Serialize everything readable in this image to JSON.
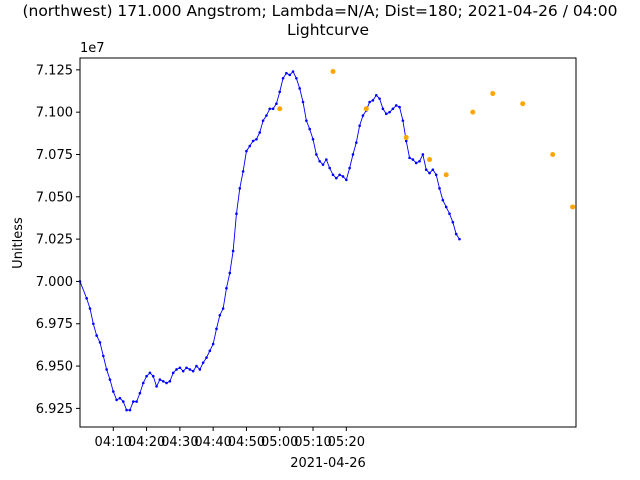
{
  "chart_data": {
    "type": "line",
    "title_line1": "(northwest) 171.000 Angstrom; Lambda=N/A; Dist=180; 2021-04-26 / 04:00",
    "title_line2": "Lightcurve",
    "xlabel": "2021-04-26",
    "ylabel": "Unitless",
    "y_offset_label": "1e7",
    "x_unit": "minutes after 04:00",
    "xlim": [
      0,
      149
    ],
    "ylim": [
      69.14,
      71.32
    ],
    "y_multiplier": 100000,
    "x_ticks": [
      {
        "value": 10,
        "label": "04:10"
      },
      {
        "value": 20,
        "label": "04:20"
      },
      {
        "value": 30,
        "label": "04:30"
      },
      {
        "value": 40,
        "label": "04:40"
      },
      {
        "value": 50,
        "label": "04:50"
      },
      {
        "value": 60,
        "label": "05:00"
      },
      {
        "value": 70,
        "label": "05:10"
      },
      {
        "value": 80,
        "label": "05:20"
      }
    ],
    "y_ticks": [
      {
        "value": 69.25,
        "label": "6.925"
      },
      {
        "value": 69.5,
        "label": "6.950"
      },
      {
        "value": 69.75,
        "label": "6.975"
      },
      {
        "value": 70.0,
        "label": "7.000"
      },
      {
        "value": 70.25,
        "label": "7.025"
      },
      {
        "value": 70.5,
        "label": "7.050"
      },
      {
        "value": 70.75,
        "label": "7.075"
      },
      {
        "value": 71.0,
        "label": "7.100"
      },
      {
        "value": 71.25,
        "label": "7.125"
      }
    ],
    "series": [
      {
        "color": "#0000ff",
        "points": [
          [
            0,
            70.0
          ],
          [
            2,
            69.9
          ],
          [
            3,
            69.84
          ],
          [
            4,
            69.75
          ],
          [
            5,
            69.68
          ],
          [
            6,
            69.64
          ],
          [
            7,
            69.56
          ],
          [
            8,
            69.48
          ],
          [
            9,
            69.42
          ],
          [
            10,
            69.35
          ],
          [
            11,
            69.3
          ],
          [
            12,
            69.31
          ],
          [
            13,
            69.29
          ],
          [
            14,
            69.24
          ],
          [
            15,
            69.24
          ],
          [
            16,
            69.29
          ],
          [
            17,
            69.29
          ],
          [
            18,
            69.34
          ],
          [
            19,
            69.4
          ],
          [
            20,
            69.44
          ],
          [
            21,
            69.46
          ],
          [
            22,
            69.44
          ],
          [
            23,
            69.38
          ],
          [
            24,
            69.42
          ],
          [
            25,
            69.41
          ],
          [
            26,
            69.4
          ],
          [
            27,
            69.41
          ],
          [
            28,
            69.46
          ],
          [
            29,
            69.48
          ],
          [
            30,
            69.49
          ],
          [
            31,
            69.47
          ],
          [
            32,
            69.49
          ],
          [
            33,
            69.48
          ],
          [
            34,
            69.47
          ],
          [
            35,
            69.5
          ],
          [
            36,
            69.48
          ],
          [
            37,
            69.52
          ],
          [
            38,
            69.55
          ],
          [
            39,
            69.59
          ],
          [
            40,
            69.63
          ],
          [
            41,
            69.72
          ],
          [
            42,
            69.8
          ],
          [
            43,
            69.84
          ],
          [
            44,
            69.96
          ],
          [
            45,
            70.05
          ],
          [
            46,
            70.18
          ],
          [
            47,
            70.4
          ],
          [
            48,
            70.55
          ],
          [
            49,
            70.65
          ],
          [
            50,
            70.77
          ],
          [
            51,
            70.8
          ],
          [
            52,
            70.83
          ],
          [
            53,
            70.84
          ],
          [
            54,
            70.88
          ],
          [
            55,
            70.95
          ],
          [
            56,
            70.98
          ],
          [
            57,
            71.02
          ],
          [
            58,
            71.02
          ],
          [
            59,
            71.05
          ],
          [
            60,
            71.12
          ],
          [
            61,
            71.2
          ],
          [
            62,
            71.23
          ],
          [
            63,
            71.22
          ],
          [
            64,
            71.24
          ],
          [
            65,
            71.2
          ],
          [
            66,
            71.14
          ],
          [
            67,
            71.06
          ],
          [
            68,
            70.95
          ],
          [
            69,
            70.9
          ],
          [
            70,
            70.84
          ],
          [
            71,
            70.75
          ],
          [
            72,
            70.71
          ],
          [
            73,
            70.69
          ],
          [
            74,
            70.72
          ],
          [
            75,
            70.67
          ],
          [
            76,
            70.63
          ],
          [
            77,
            70.61
          ],
          [
            78,
            70.63
          ],
          [
            79,
            70.62
          ],
          [
            80,
            70.6
          ],
          [
            81,
            70.67
          ],
          [
            82,
            70.75
          ],
          [
            83,
            70.82
          ],
          [
            84,
            70.92
          ],
          [
            85,
            70.98
          ],
          [
            86,
            71.01
          ],
          [
            87,
            71.06
          ],
          [
            88,
            71.07
          ],
          [
            89,
            71.1
          ],
          [
            90,
            71.08
          ],
          [
            91,
            71.02
          ],
          [
            92,
            70.99
          ],
          [
            93,
            71.0
          ],
          [
            94,
            71.02
          ],
          [
            95,
            71.04
          ],
          [
            96,
            71.03
          ],
          [
            97,
            70.95
          ],
          [
            98,
            70.83
          ],
          [
            99,
            70.73
          ],
          [
            100,
            70.72
          ],
          [
            101,
            70.7
          ],
          [
            102,
            70.71
          ],
          [
            103,
            70.75
          ],
          [
            104,
            70.66
          ],
          [
            105,
            70.64
          ],
          [
            106,
            70.66
          ],
          [
            107,
            70.63
          ],
          [
            108,
            70.55
          ],
          [
            109,
            70.48
          ],
          [
            110,
            70.44
          ],
          [
            111,
            70.4
          ],
          [
            112,
            70.35
          ],
          [
            113,
            70.28
          ],
          [
            114,
            70.25
          ]
        ]
      }
    ],
    "markers": {
      "color": "#ffa500",
      "points": [
        [
          60,
          71.02
        ],
        [
          76,
          71.24
        ],
        [
          86,
          71.02
        ],
        [
          98,
          70.85
        ],
        [
          105,
          70.72
        ],
        [
          110,
          70.63
        ],
        [
          118,
          71.0
        ],
        [
          124,
          71.11
        ],
        [
          133,
          71.05
        ],
        [
          142,
          70.75
        ],
        [
          148,
          70.44
        ]
      ]
    }
  }
}
